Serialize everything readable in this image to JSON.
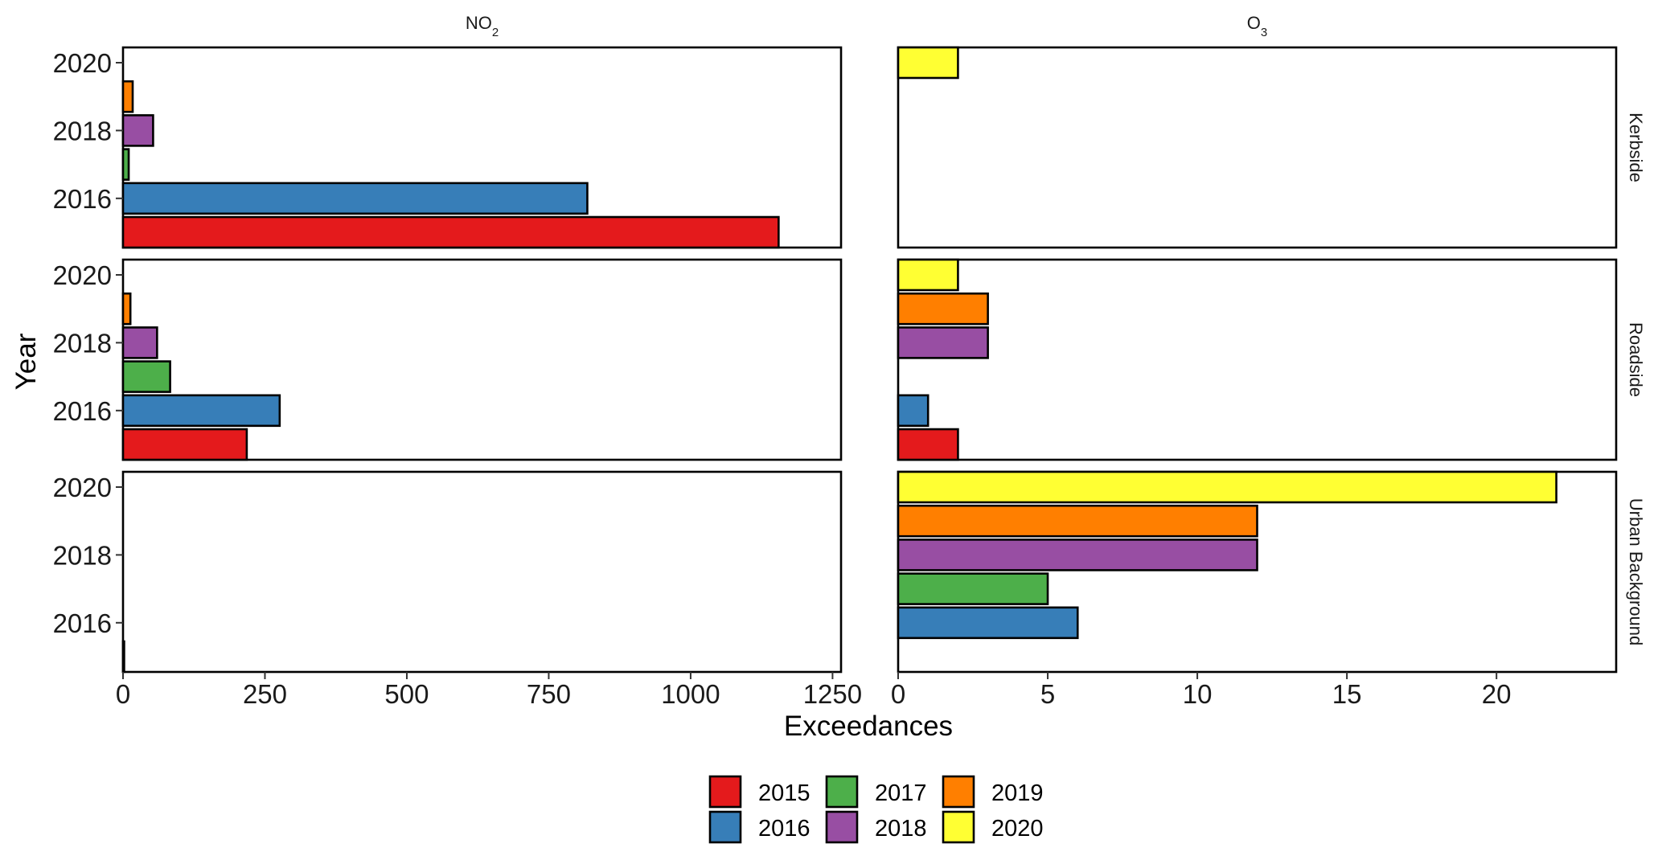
{
  "chart_data": {
    "type": "bar",
    "orientation": "horizontal",
    "xlabel": "Exceedances",
    "ylabel": "Year",
    "columns": [
      {
        "label": "NO",
        "sub": "2",
        "xlim": [
          0,
          1265
        ],
        "xticks": [
          0,
          250,
          500,
          750,
          1000,
          1250
        ]
      },
      {
        "label": "O",
        "sub": "3",
        "xlim": [
          0,
          24
        ],
        "xticks": [
          0,
          5,
          10,
          15,
          20
        ]
      }
    ],
    "rows": [
      "Kerbside",
      "Roadside",
      "Urban Background"
    ],
    "yticks": [
      "2016",
      "2018",
      "2020"
    ],
    "ytick_years": [
      2016,
      2018,
      2020
    ],
    "ylim": [
      2014.55,
      2020.45
    ],
    "legend": {
      "title": "",
      "placement": "bottom",
      "entries": [
        {
          "year": "2015",
          "color": "#E41A1C"
        },
        {
          "year": "2016",
          "color": "#377EB8"
        },
        {
          "year": "2017",
          "color": "#4DAF4A"
        },
        {
          "year": "2018",
          "color": "#984EA3"
        },
        {
          "year": "2019",
          "color": "#FF7F00"
        },
        {
          "year": "2020",
          "color": "#FFFF33"
        }
      ]
    },
    "series": [
      {
        "pollutant": "NO2",
        "site": "Kerbside",
        "values": {
          "2015": 1155,
          "2016": 818,
          "2017": 10,
          "2018": 53,
          "2019": 17,
          "2020": 0
        }
      },
      {
        "pollutant": "NO2",
        "site": "Roadside",
        "values": {
          "2015": 218,
          "2016": 276,
          "2017": 83,
          "2018": 60,
          "2019": 13,
          "2020": 0
        }
      },
      {
        "pollutant": "NO2",
        "site": "Urban Background",
        "values": {
          "2015": 2
        }
      },
      {
        "pollutant": "O3",
        "site": "Kerbside",
        "values": {
          "2020": 2
        }
      },
      {
        "pollutant": "O3",
        "site": "Roadside",
        "values": {
          "2015": 2,
          "2016": 1,
          "2018": 3,
          "2019": 3,
          "2020": 2
        }
      },
      {
        "pollutant": "O3",
        "site": "Urban Background",
        "values": {
          "2016": 6,
          "2017": 5,
          "2018": 12,
          "2019": 12,
          "2020": 22
        }
      }
    ]
  }
}
